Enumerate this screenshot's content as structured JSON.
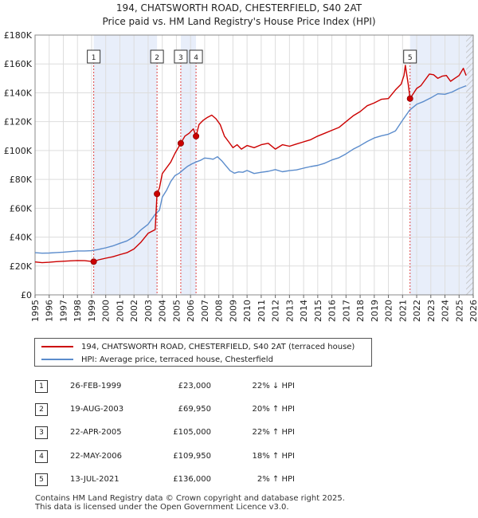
{
  "title": {
    "line1": "194, CHATSWORTH ROAD, CHESTERFIELD, S40 2AT",
    "line2": "Price paid vs. HM Land Registry's House Price Index (HPI)"
  },
  "chart_data": {
    "type": "line",
    "title": "194, CHATSWORTH ROAD, CHESTERFIELD, S40 2AT — Price paid vs. HM Land Registry's House Price Index (HPI)",
    "xlabel": "",
    "ylabel": "",
    "xlim": [
      1995,
      2026
    ],
    "ylim": [
      0,
      180000
    ],
    "y_ticks": [
      {
        "value": 0,
        "label": "£0"
      },
      {
        "value": 20000,
        "label": "£20K"
      },
      {
        "value": 40000,
        "label": "£40K"
      },
      {
        "value": 60000,
        "label": "£60K"
      },
      {
        "value": 80000,
        "label": "£80K"
      },
      {
        "value": 100000,
        "label": "£100K"
      },
      {
        "value": 120000,
        "label": "£120K"
      },
      {
        "value": 140000,
        "label": "£140K"
      },
      {
        "value": 160000,
        "label": "£160K"
      },
      {
        "value": 180000,
        "label": "£180K"
      }
    ],
    "x_ticks": [
      "1995",
      "1996",
      "1997",
      "1998",
      "1999",
      "2000",
      "2001",
      "2002",
      "2003",
      "2004",
      "2005",
      "2006",
      "2007",
      "2008",
      "2009",
      "2010",
      "2011",
      "2012",
      "2013",
      "2014",
      "2015",
      "2016",
      "2017",
      "2018",
      "2019",
      "2020",
      "2021",
      "2022",
      "2023",
      "2024",
      "2025",
      "2026"
    ],
    "series": [
      {
        "name": "194, CHATSWORTH ROAD, CHESTERFIELD, S40 2AT (terraced house)",
        "color": "#cc0000",
        "x": [
          1995.0,
          1995.5,
          1996.0,
          1996.5,
          1997.0,
          1997.5,
          1998.0,
          1998.5,
          1999.15,
          1999.5,
          2000.0,
          2000.5,
          2001.0,
          2001.5,
          2002.0,
          2002.5,
          2003.0,
          2003.5,
          2003.63,
          2003.8,
          2004.0,
          2004.3,
          2004.6,
          2004.9,
          2005.31,
          2005.6,
          2005.9,
          2006.2,
          2006.39,
          2006.6,
          2006.9,
          2007.2,
          2007.5,
          2007.8,
          2008.1,
          2008.4,
          2008.7,
          2009.0,
          2009.3,
          2009.6,
          2010.0,
          2010.5,
          2011.0,
          2011.5,
          2012.0,
          2012.5,
          2013.0,
          2013.5,
          2014.0,
          2014.5,
          2015.0,
          2015.5,
          2016.0,
          2016.5,
          2017.0,
          2017.5,
          2018.0,
          2018.5,
          2019.0,
          2019.5,
          2020.0,
          2020.5,
          2020.9,
          2021.1,
          2021.2,
          2021.4,
          2021.53,
          2021.8,
          2022.0,
          2022.3,
          2022.6,
          2022.9,
          2023.2,
          2023.5,
          2023.8,
          2024.1,
          2024.4,
          2024.7,
          2025.0,
          2025.3,
          2025.5
        ],
        "y": [
          22800,
          22300,
          22600,
          23000,
          23300,
          23600,
          23800,
          23700,
          23000,
          24300,
          25400,
          26400,
          27900,
          29200,
          31800,
          36600,
          42600,
          45200,
          69950,
          74000,
          84000,
          88000,
          92000,
          98000,
          105000,
          110000,
          112000,
          115000,
          109950,
          118000,
          121000,
          123000,
          124500,
          122000,
          118000,
          110000,
          106000,
          102000,
          104000,
          101000,
          103500,
          102000,
          104000,
          105000,
          101000,
          104000,
          103000,
          104500,
          106000,
          107500,
          110000,
          112000,
          114000,
          116000,
          120000,
          124000,
          127000,
          131000,
          133000,
          135500,
          136000,
          142000,
          146000,
          152000,
          159000,
          146000,
          136000,
          140000,
          143000,
          145000,
          149000,
          153000,
          152500,
          150000,
          151500,
          152000,
          148000,
          150000,
          152000,
          157000,
          152000
        ]
      },
      {
        "name": "HPI: Average price, terraced house, Chesterfield",
        "color": "#5b8ccc",
        "x": [
          1995.0,
          1995.5,
          1996.0,
          1996.5,
          1997.0,
          1997.5,
          1998.0,
          1998.5,
          1999.0,
          1999.5,
          2000.0,
          2000.5,
          2001.0,
          2001.5,
          2002.0,
          2002.5,
          2003.0,
          2003.5,
          2003.8,
          2004.0,
          2004.3,
          2004.6,
          2004.9,
          2005.2,
          2005.5,
          2005.8,
          2006.1,
          2006.4,
          2006.7,
          2007.0,
          2007.3,
          2007.6,
          2007.9,
          2008.2,
          2008.5,
          2008.8,
          2009.1,
          2009.4,
          2009.7,
          2010.0,
          2010.5,
          2011.0,
          2011.5,
          2012.0,
          2012.5,
          2013.0,
          2013.5,
          2014.0,
          2014.5,
          2015.0,
          2015.5,
          2016.0,
          2016.5,
          2017.0,
          2017.5,
          2018.0,
          2018.5,
          2019.0,
          2019.5,
          2020.0,
          2020.5,
          2021.0,
          2021.5,
          2022.0,
          2022.5,
          2023.0,
          2023.5,
          2024.0,
          2024.5,
          2025.0,
          2025.5
        ],
        "y": [
          29200,
          28900,
          29000,
          29300,
          29600,
          30000,
          30400,
          30400,
          30600,
          31500,
          32600,
          33900,
          35700,
          37400,
          40300,
          45100,
          48900,
          55800,
          58600,
          67700,
          72400,
          78500,
          82600,
          84300,
          86800,
          89100,
          90800,
          92100,
          93200,
          94800,
          94500,
          94000,
          95700,
          93000,
          89500,
          86000,
          84300,
          85200,
          84900,
          86200,
          84100,
          84900,
          85600,
          86800,
          85300,
          86100,
          86600,
          87800,
          88900,
          89700,
          91200,
          93500,
          95000,
          97700,
          100900,
          103400,
          106300,
          108700,
          110200,
          111300,
          113600,
          121000,
          128000,
          132000,
          134000,
          136500,
          139300,
          139000,
          140500,
          143000,
          144900
        ]
      }
    ],
    "sales": [
      {
        "num": "1",
        "year": 1999.15,
        "price": 23000
      },
      {
        "num": "2",
        "year": 2003.63,
        "price": 69950
      },
      {
        "num": "3",
        "year": 2005.31,
        "price": 105000
      },
      {
        "num": "4",
        "year": 2006.39,
        "price": 109950
      },
      {
        "num": "5",
        "year": 2021.53,
        "price": 136000
      }
    ],
    "shaded_ranges": [
      [
        1999.15,
        2003.63
      ],
      [
        2005.31,
        2006.39
      ],
      [
        2021.53,
        2026.0
      ]
    ],
    "hatch_from": 2025.5
  },
  "legend": {
    "property": "194, CHATSWORTH ROAD, CHESTERFIELD, S40 2AT (terraced house)",
    "hpi": "HPI: Average price, terraced house, Chesterfield",
    "property_color": "#cc0000",
    "hpi_color": "#5b8ccc"
  },
  "table": [
    {
      "num": "1",
      "date": "26-FEB-1999",
      "price": "£23,000",
      "hpi": "22% ↓ HPI"
    },
    {
      "num": "2",
      "date": "19-AUG-2003",
      "price": "£69,950",
      "hpi": "20% ↑ HPI"
    },
    {
      "num": "3",
      "date": "22-APR-2005",
      "price": "£105,000",
      "hpi": "22% ↑ HPI"
    },
    {
      "num": "4",
      "date": "22-MAY-2006",
      "price": "£109,950",
      "hpi": "18% ↑ HPI"
    },
    {
      "num": "5",
      "date": "13-JUL-2021",
      "price": "£136,000",
      "hpi": "2% ↑ HPI"
    }
  ],
  "footer": {
    "line1": "Contains HM Land Registry data © Crown copyright and database right 2025.",
    "line2": "This data is licensed under the Open Government Licence v3.0."
  }
}
